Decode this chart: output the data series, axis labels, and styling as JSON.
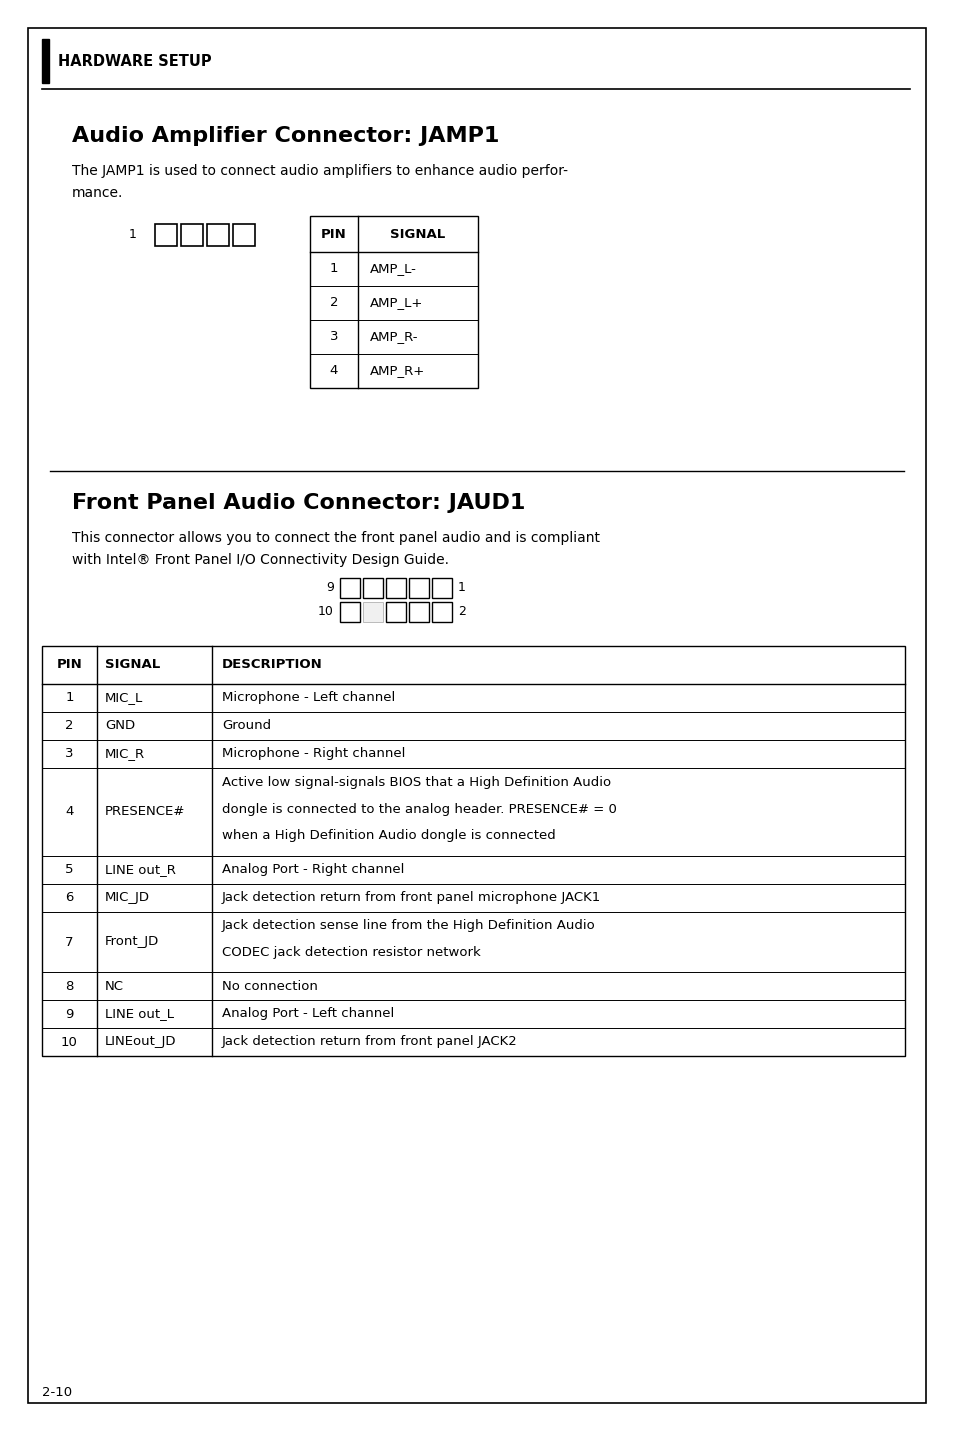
{
  "bg_color": "#ffffff",
  "header_text": "HARDWARE SETUP",
  "section1_title": "Audio Amplifier Connector: JAMP1",
  "section1_body_line1": "The JAMP1 is used to connect audio amplifiers to enhance audio perfor-",
  "section1_body_line2": "mance.",
  "jamp1_table_headers": [
    "PIN",
    "SIGNAL"
  ],
  "jamp1_table_rows": [
    [
      "1",
      "AMP_L-"
    ],
    [
      "2",
      "AMP_L+"
    ],
    [
      "3",
      "AMP_R-"
    ],
    [
      "4",
      "AMP_R+"
    ]
  ],
  "section2_title": "Front Panel Audio Connector: JAUD1",
  "section2_body_line1": "This connector allows you to connect the front panel audio and is compliant",
  "section2_body_line2": "with Intel® Front Panel I/O Connectivity Design Guide.",
  "jaud1_table_headers": [
    "PIN",
    "SIGNAL",
    "DESCRIPTION"
  ],
  "jaud1_table_rows": [
    [
      "1",
      "MIC_L",
      "Microphone - Left channel",
      1
    ],
    [
      "2",
      "GND",
      "Ground",
      1
    ],
    [
      "3",
      "MIC_R",
      "Microphone - Right channel",
      1
    ],
    [
      "4",
      "PRESENCE#",
      "Active low signal-signals BIOS that a High Definition Audio\ndongle is connected to the analog header. PRESENCE# = 0\nwhen a High Definition Audio dongle is connected",
      3
    ],
    [
      "5",
      "LINE out_R",
      "Analog Port - Right channel",
      1
    ],
    [
      "6",
      "MIC_JD",
      "Jack detection return from front panel microphone JACK1",
      1
    ],
    [
      "7",
      "Front_JD",
      "Jack detection sense line from the High Definition Audio\nCODEC jack detection resistor network",
      2
    ],
    [
      "8",
      "NC",
      "No connection",
      1
    ],
    [
      "9",
      "LINE out_L",
      "Analog Port - Left channel",
      1
    ],
    [
      "10",
      "LINEout_JD",
      "Jack detection return from front panel JACK2",
      1
    ]
  ],
  "footer_text": "2-10"
}
